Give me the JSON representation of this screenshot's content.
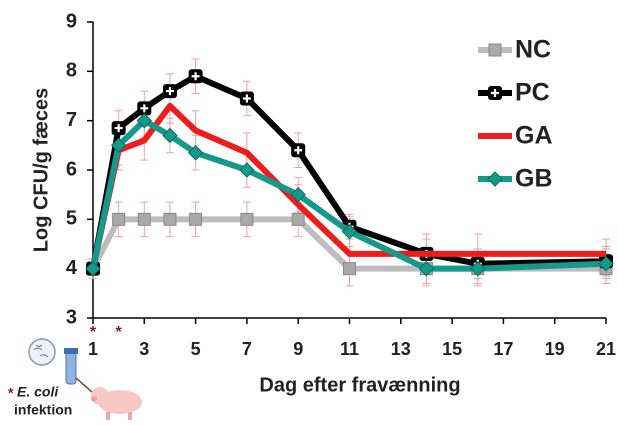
{
  "chart_data": {
    "type": "line",
    "y_label": "Log CFU/g fæces",
    "x_label": "Dag efter fravænning",
    "x": [
      1,
      2,
      3,
      4,
      5,
      7,
      9,
      11,
      14,
      16,
      21
    ],
    "xlim": [
      1,
      21
    ],
    "xticks": [
      1,
      3,
      5,
      7,
      9,
      11,
      13,
      15,
      17,
      19,
      21
    ],
    "ylim": [
      3,
      9
    ],
    "yticks": [
      3,
      4,
      5,
      6,
      7,
      8,
      9
    ],
    "error_color": "#f4a0a0",
    "series": [
      {
        "name": "NC",
        "color": "#bdbdbd",
        "marker": "square",
        "values": [
          4,
          5,
          5,
          5,
          5,
          5,
          5,
          4,
          4,
          4,
          4
        ],
        "errors": [
          0.2,
          0.35,
          0.35,
          0.35,
          0.35,
          0.35,
          0.35,
          0.35,
          0.3,
          0.3,
          0.3
        ]
      },
      {
        "name": "PC",
        "color": "#000000",
        "marker": "plus",
        "values": [
          4,
          6.85,
          7.25,
          7.6,
          7.9,
          7.45,
          6.4,
          4.85,
          4.3,
          4.1,
          4.15
        ],
        "errors": [
          0.2,
          0.35,
          0.35,
          0.35,
          0.35,
          0.35,
          0.35,
          0.25,
          0.3,
          0.3,
          0.3
        ]
      },
      {
        "name": "GA",
        "color": "#ee1c1c",
        "marker": "none",
        "values": [
          4,
          6.4,
          6.6,
          7.3,
          6.8,
          6.35,
          5.3,
          4.3,
          4.3,
          4.3,
          4.3
        ],
        "errors": [
          0.2,
          0.4,
          0.4,
          0.35,
          0.4,
          0.4,
          0.4,
          0.3,
          0.4,
          0.4,
          0.3
        ]
      },
      {
        "name": "GB",
        "color": "#14998a",
        "marker": "diamond",
        "values": [
          4,
          6.5,
          7.0,
          6.7,
          6.35,
          6.0,
          5.5,
          4.75,
          4.0,
          4.0,
          4.1
        ],
        "errors": [
          0.2,
          0.4,
          0.35,
          0.35,
          0.35,
          0.35,
          0.35,
          0.3,
          0.35,
          0.35,
          0.3
        ]
      }
    ],
    "star": "*",
    "star_days": [
      1,
      2
    ],
    "infection_organism": "E. coli",
    "infection_text": "infektion"
  }
}
